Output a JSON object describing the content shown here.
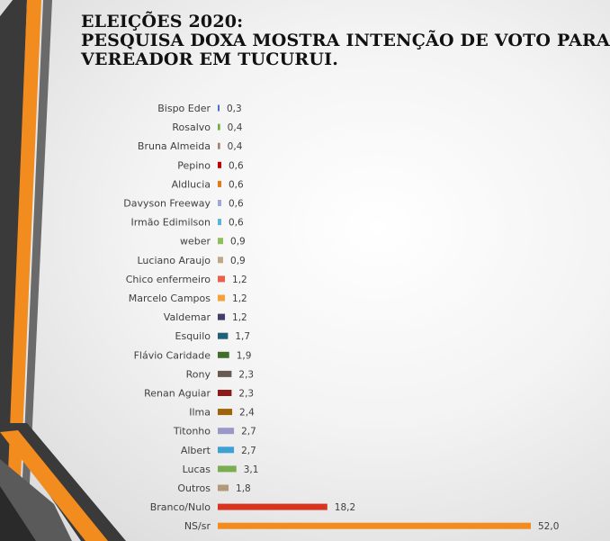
{
  "title_lines": [
    "ELEIÇÕES 2020:",
    "PESQUISA DOXA MOSTRA INTENÇÃO DE VOTO PARA",
    "VEREADOR EM TUCURUI."
  ],
  "chart_data": {
    "type": "bar",
    "orientation": "horizontal",
    "title": "ELEIÇÕES 2020: PESQUISA DOXA MOSTRA INTENÇÃO DE VOTO PARA VEREADOR EM TUCURUI.",
    "xlabel": "",
    "ylabel": "",
    "xlim": [
      0,
      52
    ],
    "grid": false,
    "legend": "none",
    "categories": [
      "Bispo Eder",
      "Rosalvo",
      "Bruna Almeida",
      "Pepino",
      "Aldlucia",
      "Davyson Freeway",
      "Irmão Edimilson",
      "weber",
      "Luciano Araujo",
      "Chico enfermeiro",
      "Marcelo Campos",
      "Valdemar",
      "Esquilo",
      "Flávio Caridade",
      "Rony",
      "Renan Aguiar",
      "Ilma",
      "Titonho",
      "Albert",
      "Lucas",
      "Outros",
      "Branco/Nulo",
      "NS/sr"
    ],
    "values": [
      0.3,
      0.4,
      0.4,
      0.6,
      0.6,
      0.6,
      0.6,
      0.9,
      0.9,
      1.2,
      1.2,
      1.2,
      1.7,
      1.9,
      2.3,
      2.3,
      2.4,
      2.7,
      2.7,
      3.1,
      1.8,
      18.2,
      52.0
    ],
    "value_labels": [
      "0,3",
      "0,4",
      "0,4",
      "0,6",
      "0,6",
      "0,6",
      "0,6",
      "0,9",
      "0,9",
      "1,2",
      "1,2",
      "1,2",
      "1,7",
      "1,9",
      "2,3",
      "2,3",
      "2,4",
      "2,7",
      "2,7",
      "3,1",
      "1,8",
      "18,2",
      "52,0"
    ],
    "colors": [
      "#4472c4",
      "#70ad47",
      "#a5806a",
      "#c00000",
      "#e07b1a",
      "#9fa8da",
      "#5ab4d6",
      "#8fbf5a",
      "#bfa88a",
      "#e8614c",
      "#f2a23a",
      "#3f3f6a",
      "#1f5f7a",
      "#3f6f2a",
      "#6a5a4f",
      "#8b1a1a",
      "#a0620a",
      "#9a98c8",
      "#3fa0d4",
      "#7aad52",
      "#b09a7a",
      "#d9341f",
      "#f28c1e"
    ]
  }
}
